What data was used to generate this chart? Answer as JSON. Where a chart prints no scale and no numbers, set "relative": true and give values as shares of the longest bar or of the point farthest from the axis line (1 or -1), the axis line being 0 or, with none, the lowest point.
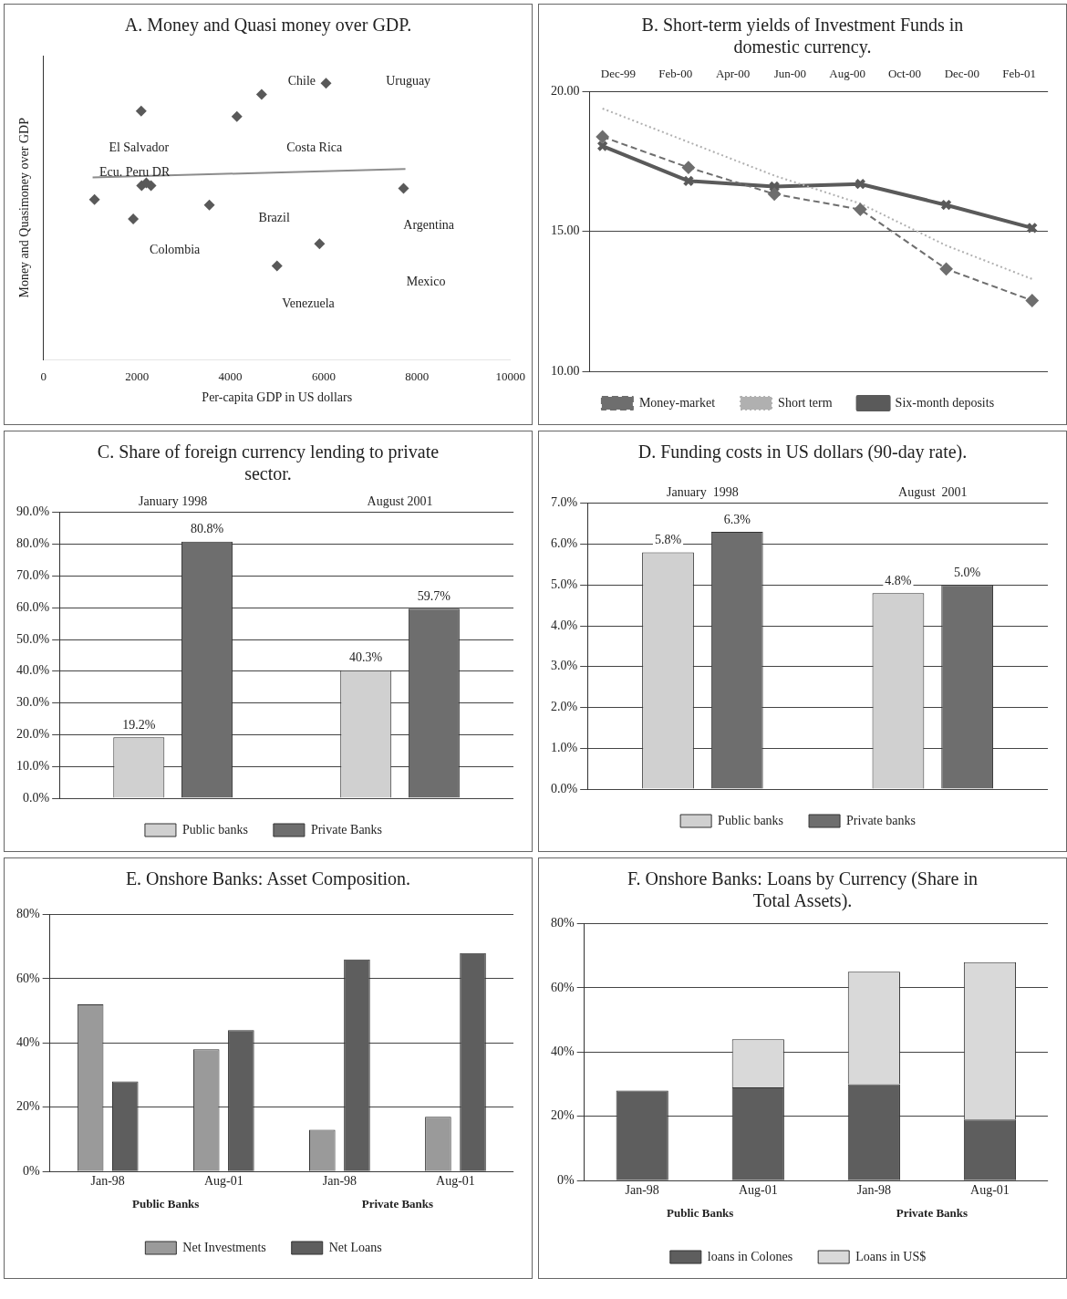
{
  "chart_data": [
    {
      "type": "scatter",
      "title": "A. Money and Quasi money over GDP.",
      "xlabel": "Per-capita GDP in US dollars",
      "ylabel": "Money and Quasimoney over GDP",
      "relative": true,
      "marker": "diamond",
      "xlim": [
        0,
        10000
      ],
      "xticks": [
        0,
        2000,
        4000,
        6000,
        8000,
        10000
      ],
      "series": [
        {
          "color": "#595959",
          "x": [
            6050,
            4670,
            4140,
            2090,
            2100,
            2300,
            2200,
            1090,
            3550,
            7710,
            1920,
            5910,
            5000
          ],
          "values": [
            1.0,
            0.96,
            0.88,
            0.9,
            0.63,
            0.63,
            0.64,
            0.58,
            0.56,
            0.62,
            0.51,
            0.42,
            0.34
          ]
        },
        {
          "type": "line",
          "marker": "none",
          "color": "#8c8c8c",
          "x": [
            1050,
            7750
          ],
          "values": [
            0.66,
            0.69
          ]
        }
      ],
      "annotations": [
        "Chile",
        "Uruguay",
        "El Salvador",
        "Costa Rica",
        "Ecu. Peru DR",
        "Brazil",
        "Argentina",
        "Colombia",
        "Mexico",
        "Venezuela"
      ]
    },
    {
      "type": "line",
      "title": "B. Short-term yields of Investment Funds in domestic currency.",
      "xlim": [
        "1999-11",
        "2001-03"
      ],
      "xticks": [
        {
          "value": "1999-12",
          "label": "Dec-99"
        },
        {
          "value": "2000-02",
          "label": "Feb-00"
        },
        {
          "value": "2000-04",
          "label": "Apr-00"
        },
        {
          "value": "2000-06",
          "label": "Jun-00"
        },
        {
          "value": "2000-08",
          "label": "Aug-00"
        },
        {
          "value": "2000-10",
          "label": "Oct-00"
        },
        {
          "value": "2000-12",
          "label": "Dec-00"
        },
        {
          "value": "2001-02",
          "label": "Feb-01"
        }
      ],
      "ylim": [
        10,
        20
      ],
      "yticks": [
        {
          "value": 10,
          "label": "10.00"
        },
        {
          "value": 15,
          "label": "15.00"
        },
        {
          "value": 20,
          "label": "20.00"
        }
      ],
      "grid": "y",
      "legend": "bottom",
      "x": [
        "1999-11-15",
        "2000-02-15",
        "2000-05-15",
        "2000-08-15",
        "2000-11-15",
        "2001-02-15"
      ],
      "series": [
        {
          "name": "Money-market",
          "color": "#6e6e6e",
          "marker": "diamond",
          "line_style": "dashed",
          "values": [
            18.39,
            17.29,
            16.34,
            15.79,
            13.66,
            12.53
          ]
        },
        {
          "name": "Short term",
          "color": "#b0b0b0",
          "marker": "none",
          "line_style": "dotted",
          "values": [
            19.4,
            18.2,
            17.0,
            16.0,
            14.5,
            13.3
          ]
        },
        {
          "name": "Six-month deposits",
          "color": "#5a5a5a",
          "marker": "cross",
          "line_style": "solid",
          "values": [
            18.06,
            16.81,
            16.61,
            16.7,
            15.95,
            15.13
          ]
        }
      ]
    },
    {
      "type": "bar",
      "title": "C. Share of foreign currency lending to private sector.",
      "categories": [
        "January 1998",
        "August 2001"
      ],
      "ylim": [
        0,
        90
      ],
      "yticks": [
        {
          "value": 0,
          "label": "0.0%"
        },
        {
          "value": 10,
          "label": "10.0%"
        },
        {
          "value": 20,
          "label": "20.0%"
        },
        {
          "value": 30,
          "label": "30.0%"
        },
        {
          "value": 40,
          "label": "40.0%"
        },
        {
          "value": 50,
          "label": "50.0%"
        },
        {
          "value": 60,
          "label": "60.0%"
        },
        {
          "value": 70,
          "label": "70.0%"
        },
        {
          "value": 80,
          "label": "80.0%"
        },
        {
          "value": 90,
          "label": "90.0%"
        }
      ],
      "grid": "y",
      "legend": "bottom",
      "series": [
        {
          "name": "Public banks",
          "color": "#d0d0d0",
          "values": [
            19.2,
            40.3
          ],
          "value_labels": [
            "19.2%",
            "40.3%"
          ]
        },
        {
          "name": "Private Banks",
          "color": "#6e6e6e",
          "values": [
            80.8,
            59.7
          ],
          "value_labels": [
            "80.8%",
            "59.7%"
          ]
        }
      ]
    },
    {
      "type": "bar",
      "title": "D. Funding costs in US dollars (90-day rate).",
      "categories": [
        "January  1998",
        "August  2001"
      ],
      "ylim": [
        0,
        7
      ],
      "yticks": [
        {
          "value": 0,
          "label": "0.0%"
        },
        {
          "value": 1,
          "label": "1.0%"
        },
        {
          "value": 2,
          "label": "2.0%"
        },
        {
          "value": 3,
          "label": "3.0%"
        },
        {
          "value": 4,
          "label": "4.0%"
        },
        {
          "value": 5,
          "label": "5.0%"
        },
        {
          "value": 6,
          "label": "6.0%"
        },
        {
          "value": 7,
          "label": "7.0%"
        }
      ],
      "grid": "y",
      "legend": "bottom",
      "series": [
        {
          "name": "Public banks",
          "color": "#d0d0d0",
          "values": [
            5.8,
            4.8
          ],
          "value_labels": [
            "5.8%",
            "4.8%"
          ]
        },
        {
          "name": "Private banks",
          "color": "#6e6e6e",
          "values": [
            6.3,
            5.0
          ],
          "value_labels": [
            "6.3%",
            "5.0%"
          ]
        }
      ]
    },
    {
      "type": "bar",
      "title": "E. Onshore Banks: Asset Composition.",
      "categories": [
        "Jan-98",
        "Aug-01",
        "Jan-98",
        "Aug-01"
      ],
      "ylim": [
        0,
        80
      ],
      "yticks": [
        {
          "value": 0,
          "label": "0%"
        },
        {
          "value": 20,
          "label": "20%"
        },
        {
          "value": 40,
          "label": "40%"
        },
        {
          "value": 60,
          "label": "60%"
        },
        {
          "value": 80,
          "label": "80%"
        }
      ],
      "grid": "y",
      "legend": "bottom",
      "series": [
        {
          "name": "Net Investments",
          "color": "#9a9a9a",
          "values": [
            52,
            38,
            13,
            17
          ]
        },
        {
          "name": "Net Loans",
          "color": "#5e5e5e",
          "values": [
            28,
            44,
            66,
            68
          ]
        }
      ],
      "annotations": [
        "Public Banks",
        "Private Banks"
      ]
    },
    {
      "type": "bar",
      "title": "F. Onshore Banks: Loans by Currency (Share in Total Assets).",
      "categories": [
        "Jan-98",
        "Aug-01",
        "Jan-98",
        "Aug-01"
      ],
      "stacked": true,
      "ylim": [
        0,
        80
      ],
      "yticks": [
        {
          "value": 0,
          "label": "0%"
        },
        {
          "value": 20,
          "label": "20%"
        },
        {
          "value": 40,
          "label": "40%"
        },
        {
          "value": 60,
          "label": "60%"
        },
        {
          "value": 80,
          "label": "80%"
        }
      ],
      "grid": "y",
      "legend": "bottom",
      "series": [
        {
          "name": "loans in Colones",
          "color": "#5e5e5e",
          "values": [
            28,
            29,
            30,
            19
          ]
        },
        {
          "name": "Loans in US$",
          "color": "#d9d9d9",
          "values": [
            0,
            15,
            35,
            49
          ]
        }
      ],
      "annotations": [
        "Public Banks",
        "Private Banks"
      ]
    }
  ]
}
